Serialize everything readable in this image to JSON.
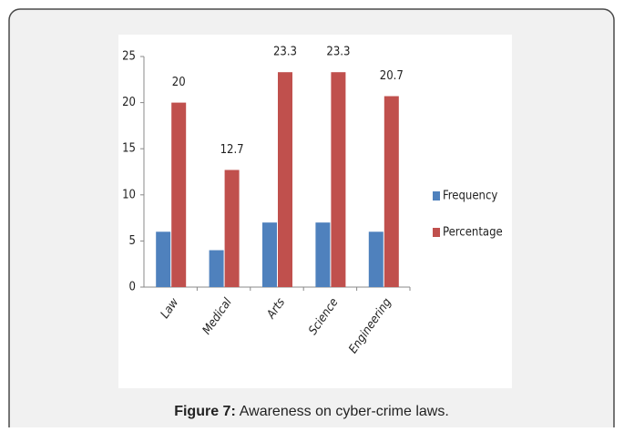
{
  "chart_data": {
    "type": "bar",
    "categories": [
      "Law",
      "Medical",
      "Arts",
      "Science",
      "Engineering"
    ],
    "series": [
      {
        "name": "Frequency",
        "color": "#4f81bd",
        "values": [
          6,
          4,
          7,
          7,
          6
        ]
      },
      {
        "name": "Percentage",
        "color": "#c0504d",
        "values": [
          20,
          12.7,
          23.3,
          23.3,
          20.7
        ],
        "data_labels": true
      }
    ],
    "ylim": [
      0,
      25
    ],
    "yticks": [
      0,
      5,
      10,
      15,
      20,
      25
    ],
    "legend": "right",
    "caption": {
      "label": "Figure 7:",
      "text": "Awareness on cyber-crime laws."
    }
  }
}
